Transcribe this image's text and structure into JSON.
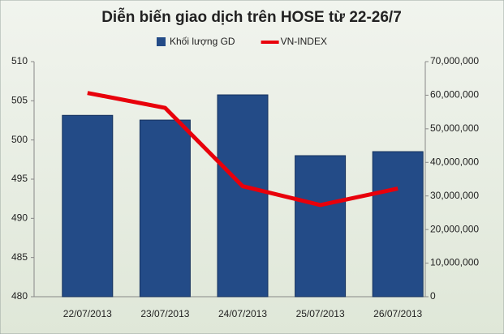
{
  "chart_data": {
    "type": "bar",
    "title": "Diễn biến giao dịch trên HOSE từ 22-26/7",
    "categories": [
      "22/07/2013",
      "23/07/2013",
      "24/07/2013",
      "25/07/2013",
      "26/07/2013"
    ],
    "series": [
      {
        "name": "Khối lượng GD",
        "type": "bar",
        "axis": "y2",
        "color": "#234b87",
        "values": [
          54000000,
          52600000,
          60100000,
          42000000,
          43200000
        ]
      },
      {
        "name": "VN-INDEX",
        "type": "line",
        "axis": "y",
        "color": "#e8000b",
        "values": [
          506.0,
          504.1,
          494.1,
          491.7,
          493.8
        ]
      }
    ],
    "ylim": [
      480,
      510
    ],
    "yticks": [
      480,
      485,
      490,
      495,
      500,
      505,
      510
    ],
    "y2lim": [
      0,
      70000000
    ],
    "y2ticks": [
      0,
      {
        "value": 10000000,
        "label": "10,000,000"
      },
      {
        "value": 20000000,
        "label": "20,000,000"
      },
      {
        "value": 30000000,
        "label": "30,000,000"
      },
      {
        "value": 40000000,
        "label": "40,000,000"
      },
      {
        "value": 50000000,
        "label": "50,000,000"
      },
      {
        "value": 60000000,
        "label": "60,000,000"
      },
      {
        "value": 70000000,
        "label": "70,000,000"
      }
    ],
    "legend": "top"
  }
}
